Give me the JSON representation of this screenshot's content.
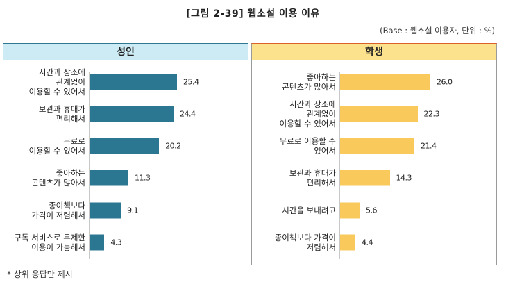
{
  "header": {
    "title": "[그림 2-39] 웹소설 이용 이유",
    "base_note": "(Base : 웹소설 이용자, 단위 : %)"
  },
  "footnote": "* 상위 응답만 제시",
  "colors": {
    "adult_bar": "#2b7690",
    "adult_header": "#cdebf4",
    "student_bar": "#f9c95c",
    "student_header": "#fde28e"
  },
  "panels": [
    {
      "title": "성인",
      "items": [
        {
          "label": "시간과 장소에\n관계없이\n이용할 수 있어서",
          "value": "25.4"
        },
        {
          "label": "보관과 휴대가\n편리해서",
          "value": "24.4"
        },
        {
          "label": "무료로\n이용할 수 있어서",
          "value": "20.2"
        },
        {
          "label": "좋아하는\n콘텐츠가 많아서",
          "value": "11.3"
        },
        {
          "label": "종이책보다\n가격이 저렴해서",
          "value": "9.1"
        },
        {
          "label": "구독 서비스로 무제한\n이용이 가능해서",
          "value": "4.3"
        }
      ]
    },
    {
      "title": "학생",
      "items": [
        {
          "label": "좋아하는\n콘텐츠가 많아서",
          "value": "26.0"
        },
        {
          "label": "시간과 장소에\n관계없이\n이용할 수 있어서",
          "value": "22.3"
        },
        {
          "label": "무료로 이용할 수\n있어서",
          "value": "21.4"
        },
        {
          "label": "보관과 휴대가\n편리해서",
          "value": "14.3"
        },
        {
          "label": "시간을 보내려고",
          "value": "5.6"
        },
        {
          "label": "종이책보다 가격이\n저렴해서",
          "value": "4.4"
        }
      ]
    }
  ],
  "chart_data": [
    {
      "type": "bar",
      "orientation": "horizontal",
      "title": "성인",
      "categories": [
        "시간과 장소에 관계없이 이용할 수 있어서",
        "보관과 휴대가 편리해서",
        "무료로 이용할 수 있어서",
        "좋아하는 콘텐츠가 많아서",
        "종이책보다 가격이 저렴해서",
        "구독 서비스로 무제한 이용이 가능해서"
      ],
      "values": [
        25.4,
        24.4,
        20.2,
        11.3,
        9.1,
        4.3
      ],
      "unit": "%",
      "color": "#2b7690",
      "grid": false
    },
    {
      "type": "bar",
      "orientation": "horizontal",
      "title": "학생",
      "categories": [
        "좋아하는 콘텐츠가 많아서",
        "시간과 장소에 관계없이 이용할 수 있어서",
        "무료로 이용할 수 있어서",
        "보관과 휴대가 편리해서",
        "시간을 보내려고",
        "종이책보다 가격이 저렴해서"
      ],
      "values": [
        26.0,
        22.3,
        21.4,
        14.3,
        5.6,
        4.4
      ],
      "unit": "%",
      "color": "#f9c95c",
      "grid": false
    }
  ]
}
